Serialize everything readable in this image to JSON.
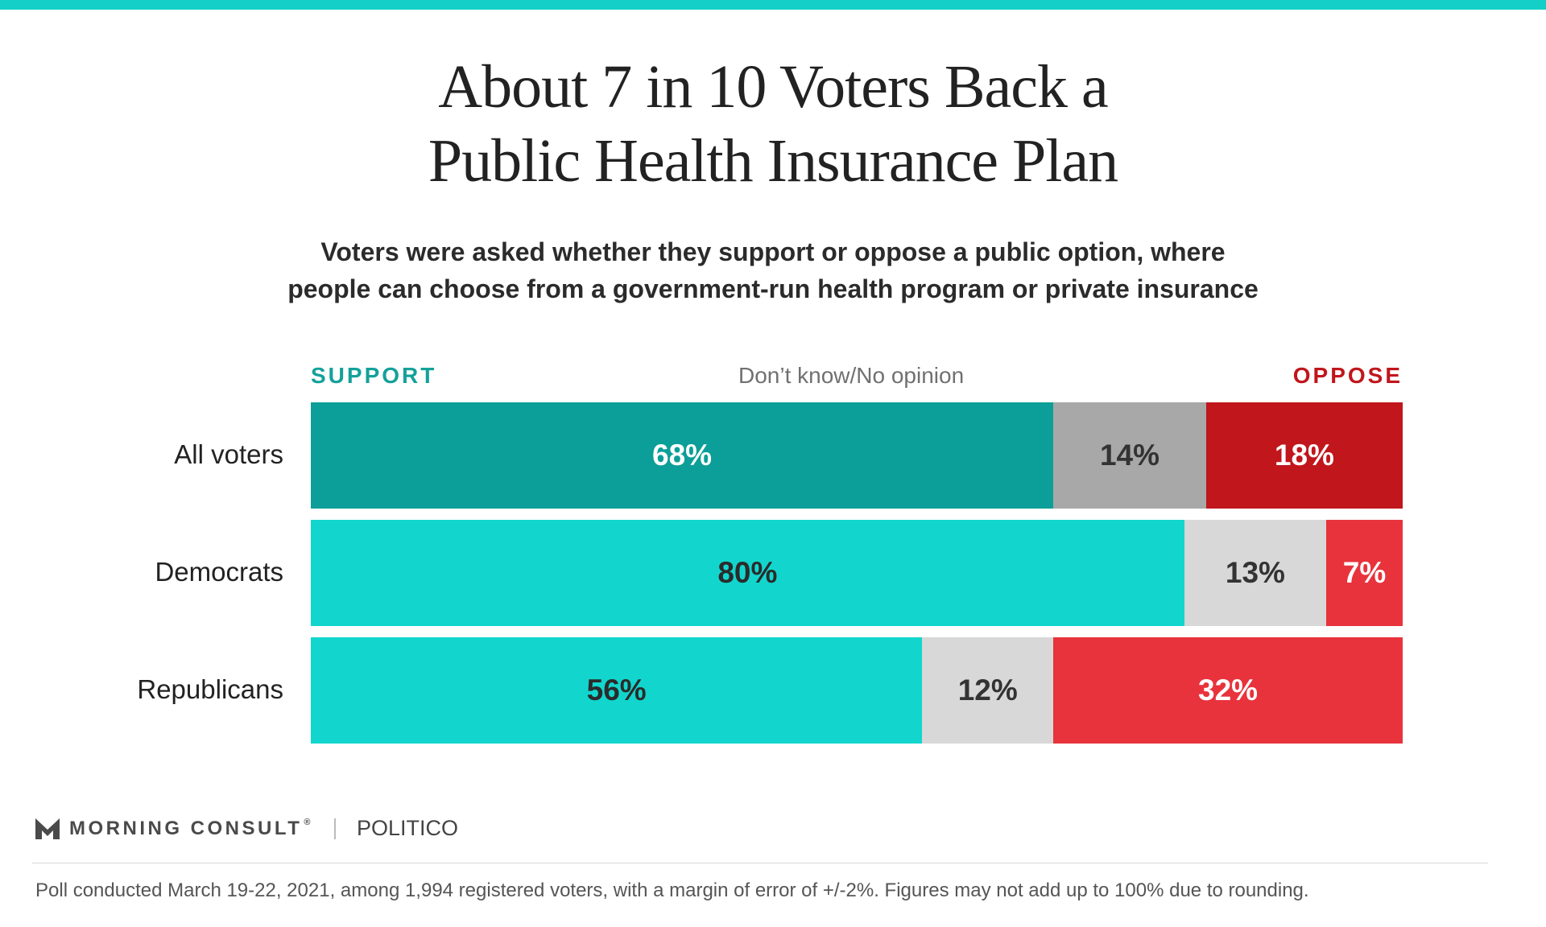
{
  "header": {
    "title_lines": [
      "About 7 in 10 Voters Back a",
      "Public Health Insurance Plan"
    ],
    "subtitle_lines": [
      "Voters were asked whether they support or oppose a public option, where",
      "people can choose from a government-run health program or private insurance"
    ]
  },
  "legend": {
    "support": "SUPPORT",
    "dont_know": "Don’t know/No opinion",
    "oppose": "OPPOSE"
  },
  "colors": {
    "accent_rule": "#14cfc7",
    "support_dark": "#0c9e98",
    "support_light": "#12d6cd",
    "dont_know_dark": "#a8a8a8",
    "dont_know_light": "#d8d8d8",
    "oppose_dark": "#c0161c",
    "oppose_light": "#e8333c"
  },
  "chart_data": {
    "type": "bar",
    "orientation": "horizontal",
    "stacked": true,
    "categories": [
      "All voters",
      "Democrats",
      "Republicans"
    ],
    "series": [
      {
        "name": "SUPPORT",
        "values": [
          68,
          80,
          56
        ],
        "labels": [
          "68%",
          "80%",
          "56%"
        ]
      },
      {
        "name": "Don’t know/No opinion",
        "values": [
          14,
          13,
          12
        ],
        "labels": [
          "14%",
          "13%",
          "12%"
        ]
      },
      {
        "name": "OPPOSE",
        "values": [
          18,
          7,
          32
        ],
        "labels": [
          "18%",
          "7%",
          "32%"
        ]
      }
    ],
    "legend_position": "top",
    "grid": false,
    "value_unit": "%"
  },
  "footer": {
    "brand": "MORNING CONSULT",
    "brand_mark": "®",
    "partner": "POLITICO",
    "note": "Poll conducted March 19-22, 2021, among 1,994 registered voters, with a margin of error of +/-2%. Figures may not add up to 100% due to rounding."
  }
}
